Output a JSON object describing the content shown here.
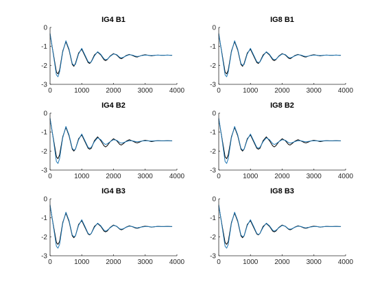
{
  "chart_data": [
    {
      "type": "line",
      "title": "IG4  B1",
      "xlim": [
        0,
        4000
      ],
      "ylim": [
        -3,
        0
      ],
      "xticks": [
        "0",
        "1000",
        "2000",
        "3000",
        "4000"
      ],
      "yticks": [
        "0",
        "-1",
        "-2",
        "-3"
      ],
      "grid": false,
      "x": [
        0,
        100,
        200,
        250,
        300,
        400,
        500,
        600,
        700,
        750,
        800,
        900,
        1000,
        1100,
        1200,
        1250,
        1300,
        1400,
        1500,
        1600,
        1700,
        1750,
        1800,
        1900,
        2000,
        2100,
        2200,
        2250,
        2300,
        2400,
        2500,
        2600,
        2700,
        2750,
        2800,
        2900,
        3000,
        3100,
        3200,
        3300,
        3400,
        3500,
        3600,
        3700,
        3800,
        3850
      ],
      "series": [
        {
          "color": "#000000",
          "values": [
            -0.35,
            -1.35,
            -2.35,
            -2.45,
            -2.25,
            -1.25,
            -0.75,
            -1.2,
            -1.95,
            -2.05,
            -1.9,
            -1.35,
            -1.15,
            -1.5,
            -1.85,
            -1.9,
            -1.8,
            -1.45,
            -1.3,
            -1.45,
            -1.7,
            -1.75,
            -1.7,
            -1.5,
            -1.38,
            -1.45,
            -1.62,
            -1.65,
            -1.6,
            -1.48,
            -1.42,
            -1.48,
            -1.55,
            -1.56,
            -1.53,
            -1.47,
            -1.44,
            -1.47,
            -1.5,
            -1.47,
            -1.46,
            -1.47,
            -1.47,
            -1.46,
            -1.47,
            -1.47
          ]
        },
        {
          "color": "#1f77b4",
          "values": [
            -0.3,
            -1.4,
            -2.5,
            -2.6,
            -2.35,
            -1.3,
            -0.7,
            -1.15,
            -1.9,
            -2.0,
            -1.95,
            -1.4,
            -1.1,
            -1.45,
            -1.8,
            -1.85,
            -1.82,
            -1.5,
            -1.28,
            -1.42,
            -1.65,
            -1.7,
            -1.68,
            -1.52,
            -1.4,
            -1.43,
            -1.58,
            -1.6,
            -1.58,
            -1.5,
            -1.44,
            -1.46,
            -1.52,
            -1.53,
            -1.52,
            -1.48,
            -1.46,
            -1.47,
            -1.48,
            -1.47,
            -1.46,
            -1.47,
            -1.47,
            -1.46,
            -1.47,
            -1.47
          ]
        }
      ]
    },
    {
      "type": "line",
      "title": "IG8  B1",
      "xlim": [
        0,
        4000
      ],
      "ylim": [
        -3,
        0
      ],
      "xticks": [
        "0",
        "1000",
        "2000",
        "3000",
        "4000"
      ],
      "yticks": [
        "0",
        "-1",
        "-2",
        "-3"
      ],
      "grid": false,
      "x": [
        0,
        100,
        200,
        250,
        300,
        400,
        500,
        600,
        700,
        750,
        800,
        900,
        1000,
        1100,
        1200,
        1250,
        1300,
        1400,
        1500,
        1600,
        1700,
        1750,
        1800,
        1900,
        2000,
        2100,
        2200,
        2250,
        2300,
        2400,
        2500,
        2600,
        2700,
        2750,
        2800,
        2900,
        3000,
        3100,
        3200,
        3300,
        3400,
        3500,
        3600,
        3700,
        3800,
        3850
      ],
      "series": [
        {
          "color": "#000000",
          "values": [
            -0.35,
            -1.35,
            -2.35,
            -2.45,
            -2.25,
            -1.25,
            -0.75,
            -1.2,
            -1.95,
            -2.05,
            -1.9,
            -1.35,
            -1.15,
            -1.5,
            -1.85,
            -1.9,
            -1.8,
            -1.45,
            -1.3,
            -1.45,
            -1.7,
            -1.75,
            -1.7,
            -1.5,
            -1.38,
            -1.45,
            -1.62,
            -1.65,
            -1.6,
            -1.48,
            -1.42,
            -1.48,
            -1.55,
            -1.56,
            -1.53,
            -1.47,
            -1.44,
            -1.47,
            -1.5,
            -1.47,
            -1.46,
            -1.47,
            -1.47,
            -1.46,
            -1.47,
            -1.47
          ]
        },
        {
          "color": "#1f77b4",
          "values": [
            -0.3,
            -1.4,
            -2.5,
            -2.6,
            -2.35,
            -1.3,
            -0.7,
            -1.15,
            -1.9,
            -2.0,
            -1.95,
            -1.4,
            -1.1,
            -1.45,
            -1.8,
            -1.85,
            -1.82,
            -1.5,
            -1.28,
            -1.42,
            -1.65,
            -1.7,
            -1.68,
            -1.52,
            -1.4,
            -1.43,
            -1.58,
            -1.6,
            -1.58,
            -1.5,
            -1.44,
            -1.46,
            -1.52,
            -1.53,
            -1.52,
            -1.48,
            -1.46,
            -1.47,
            -1.48,
            -1.47,
            -1.46,
            -1.47,
            -1.47,
            -1.46,
            -1.47,
            -1.47
          ]
        }
      ]
    },
    {
      "type": "line",
      "title": "IG4  B2",
      "xlim": [
        0,
        4000
      ],
      "ylim": [
        -3,
        0
      ],
      "xticks": [
        "0",
        "1000",
        "2000",
        "3000",
        "4000"
      ],
      "yticks": [
        "0",
        "-1",
        "-2",
        "-3"
      ],
      "grid": false,
      "x": [
        0,
        100,
        200,
        250,
        300,
        400,
        500,
        600,
        700,
        750,
        800,
        900,
        1000,
        1100,
        1200,
        1250,
        1300,
        1400,
        1500,
        1600,
        1700,
        1750,
        1800,
        1900,
        2000,
        2100,
        2200,
        2250,
        2300,
        2400,
        2500,
        2600,
        2700,
        2750,
        2800,
        2900,
        3000,
        3100,
        3200,
        3300,
        3400,
        3500,
        3600,
        3700,
        3800,
        3850
      ],
      "series": [
        {
          "color": "#000000",
          "values": [
            -0.3,
            -1.3,
            -2.3,
            -2.4,
            -2.2,
            -1.25,
            -0.75,
            -1.2,
            -1.9,
            -2.0,
            -1.9,
            -1.35,
            -1.15,
            -1.5,
            -1.85,
            -1.9,
            -1.85,
            -1.45,
            -1.25,
            -1.45,
            -1.72,
            -1.78,
            -1.72,
            -1.5,
            -1.35,
            -1.45,
            -1.65,
            -1.68,
            -1.62,
            -1.48,
            -1.4,
            -1.47,
            -1.55,
            -1.57,
            -1.54,
            -1.47,
            -1.43,
            -1.46,
            -1.5,
            -1.47,
            -1.45,
            -1.46,
            -1.46,
            -1.45,
            -1.46,
            -1.46
          ]
        },
        {
          "color": "#1f77b4",
          "values": [
            -0.25,
            -1.35,
            -2.55,
            -2.65,
            -2.4,
            -1.3,
            -0.7,
            -1.15,
            -1.85,
            -1.95,
            -1.9,
            -1.4,
            -1.1,
            -1.45,
            -1.8,
            -1.85,
            -1.8,
            -1.5,
            -1.3,
            -1.4,
            -1.6,
            -1.65,
            -1.62,
            -1.5,
            -1.4,
            -1.43,
            -1.55,
            -1.58,
            -1.56,
            -1.5,
            -1.45,
            -1.46,
            -1.5,
            -1.51,
            -1.5,
            -1.47,
            -1.46,
            -1.46,
            -1.47,
            -1.46,
            -1.45,
            -1.46,
            -1.46,
            -1.45,
            -1.46,
            -1.46
          ]
        }
      ]
    },
    {
      "type": "line",
      "title": "IG8  B2",
      "xlim": [
        0,
        4000
      ],
      "ylim": [
        -3,
        0
      ],
      "xticks": [
        "0",
        "1000",
        "2000",
        "3000",
        "4000"
      ],
      "yticks": [
        "0",
        "-1",
        "-2",
        "-3"
      ],
      "grid": false,
      "x": [
        0,
        100,
        200,
        250,
        300,
        400,
        500,
        600,
        700,
        750,
        800,
        900,
        1000,
        1100,
        1200,
        1250,
        1300,
        1400,
        1500,
        1600,
        1700,
        1750,
        1800,
        1900,
        2000,
        2100,
        2200,
        2250,
        2300,
        2400,
        2500,
        2600,
        2700,
        2750,
        2800,
        2900,
        3000,
        3100,
        3200,
        3300,
        3400,
        3500,
        3600,
        3700,
        3800,
        3850
      ],
      "series": [
        {
          "color": "#000000",
          "values": [
            -0.3,
            -1.3,
            -2.3,
            -2.4,
            -2.2,
            -1.25,
            -0.75,
            -1.2,
            -1.9,
            -2.0,
            -1.9,
            -1.35,
            -1.15,
            -1.5,
            -1.85,
            -1.9,
            -1.85,
            -1.45,
            -1.25,
            -1.45,
            -1.72,
            -1.78,
            -1.72,
            -1.5,
            -1.35,
            -1.45,
            -1.65,
            -1.68,
            -1.62,
            -1.48,
            -1.4,
            -1.47,
            -1.55,
            -1.57,
            -1.54,
            -1.47,
            -1.43,
            -1.46,
            -1.5,
            -1.47,
            -1.45,
            -1.46,
            -1.46,
            -1.45,
            -1.46,
            -1.46
          ]
        },
        {
          "color": "#1f77b4",
          "values": [
            -0.25,
            -1.35,
            -2.55,
            -2.65,
            -2.4,
            -1.3,
            -0.7,
            -1.15,
            -1.85,
            -1.95,
            -1.9,
            -1.4,
            -1.1,
            -1.45,
            -1.8,
            -1.85,
            -1.8,
            -1.5,
            -1.3,
            -1.4,
            -1.6,
            -1.65,
            -1.62,
            -1.5,
            -1.4,
            -1.43,
            -1.55,
            -1.58,
            -1.56,
            -1.5,
            -1.45,
            -1.46,
            -1.5,
            -1.51,
            -1.5,
            -1.47,
            -1.46,
            -1.46,
            -1.47,
            -1.46,
            -1.45,
            -1.46,
            -1.46,
            -1.45,
            -1.46,
            -1.46
          ]
        }
      ]
    },
    {
      "type": "line",
      "title": "IG4  B3",
      "xlim": [
        0,
        4000
      ],
      "ylim": [
        -3,
        0
      ],
      "xticks": [
        "0",
        "1000",
        "2000",
        "3000",
        "4000"
      ],
      "yticks": [
        "0",
        "-1",
        "-2",
        "-3"
      ],
      "grid": false,
      "x": [
        0,
        100,
        200,
        250,
        300,
        400,
        500,
        600,
        700,
        750,
        800,
        900,
        1000,
        1100,
        1200,
        1250,
        1300,
        1400,
        1500,
        1600,
        1700,
        1750,
        1800,
        1900,
        2000,
        2100,
        2200,
        2250,
        2300,
        2400,
        2500,
        2600,
        2700,
        2750,
        2800,
        2900,
        3000,
        3100,
        3200,
        3300,
        3400,
        3500,
        3600,
        3700,
        3800,
        3850
      ],
      "series": [
        {
          "color": "#000000",
          "values": [
            -0.35,
            -1.35,
            -2.3,
            -2.4,
            -2.25,
            -1.25,
            -0.75,
            -1.2,
            -1.95,
            -2.05,
            -1.95,
            -1.35,
            -1.15,
            -1.5,
            -1.85,
            -1.9,
            -1.82,
            -1.45,
            -1.3,
            -1.45,
            -1.7,
            -1.74,
            -1.7,
            -1.5,
            -1.38,
            -1.45,
            -1.6,
            -1.63,
            -1.6,
            -1.49,
            -1.42,
            -1.47,
            -1.54,
            -1.55,
            -1.53,
            -1.47,
            -1.44,
            -1.46,
            -1.49,
            -1.47,
            -1.45,
            -1.46,
            -1.46,
            -1.45,
            -1.46,
            -1.46
          ]
        },
        {
          "color": "#1f77b4",
          "values": [
            -0.3,
            -1.4,
            -2.5,
            -2.6,
            -2.4,
            -1.3,
            -0.7,
            -1.15,
            -1.9,
            -2.0,
            -1.95,
            -1.4,
            -1.1,
            -1.45,
            -1.82,
            -1.88,
            -1.82,
            -1.5,
            -1.28,
            -1.42,
            -1.65,
            -1.7,
            -1.66,
            -1.52,
            -1.4,
            -1.44,
            -1.58,
            -1.6,
            -1.58,
            -1.5,
            -1.44,
            -1.46,
            -1.52,
            -1.53,
            -1.51,
            -1.48,
            -1.46,
            -1.46,
            -1.48,
            -1.47,
            -1.45,
            -1.46,
            -1.46,
            -1.45,
            -1.46,
            -1.46
          ]
        }
      ]
    },
    {
      "type": "line",
      "title": "IG8  B3",
      "xlim": [
        0,
        4000
      ],
      "ylim": [
        -3,
        0
      ],
      "xticks": [
        "0",
        "1000",
        "2000",
        "3000",
        "4000"
      ],
      "yticks": [
        "0",
        "-1",
        "-2",
        "-3"
      ],
      "grid": false,
      "x": [
        0,
        100,
        200,
        250,
        300,
        400,
        500,
        600,
        700,
        750,
        800,
        900,
        1000,
        1100,
        1200,
        1250,
        1300,
        1400,
        1500,
        1600,
        1700,
        1750,
        1800,
        1900,
        2000,
        2100,
        2200,
        2250,
        2300,
        2400,
        2500,
        2600,
        2700,
        2750,
        2800,
        2900,
        3000,
        3100,
        3200,
        3300,
        3400,
        3500,
        3600,
        3700,
        3800,
        3850
      ],
      "series": [
        {
          "color": "#000000",
          "values": [
            -0.35,
            -1.35,
            -2.3,
            -2.4,
            -2.25,
            -1.25,
            -0.75,
            -1.2,
            -1.95,
            -2.05,
            -1.95,
            -1.35,
            -1.15,
            -1.5,
            -1.85,
            -1.9,
            -1.82,
            -1.45,
            -1.3,
            -1.45,
            -1.7,
            -1.74,
            -1.7,
            -1.5,
            -1.38,
            -1.45,
            -1.6,
            -1.63,
            -1.6,
            -1.49,
            -1.42,
            -1.47,
            -1.54,
            -1.55,
            -1.53,
            -1.47,
            -1.44,
            -1.46,
            -1.49,
            -1.47,
            -1.45,
            -1.46,
            -1.46,
            -1.45,
            -1.46,
            -1.46
          ]
        },
        {
          "color": "#1f77b4",
          "values": [
            -0.3,
            -1.4,
            -2.5,
            -2.6,
            -2.4,
            -1.3,
            -0.7,
            -1.15,
            -1.9,
            -2.0,
            -1.95,
            -1.4,
            -1.1,
            -1.45,
            -1.82,
            -1.88,
            -1.82,
            -1.5,
            -1.28,
            -1.42,
            -1.65,
            -1.7,
            -1.66,
            -1.52,
            -1.4,
            -1.44,
            -1.58,
            -1.6,
            -1.58,
            -1.5,
            -1.44,
            -1.46,
            -1.52,
            -1.53,
            -1.51,
            -1.48,
            -1.46,
            -1.46,
            -1.48,
            -1.47,
            -1.45,
            -1.46,
            -1.46,
            -1.45,
            -1.46,
            -1.46
          ]
        }
      ]
    }
  ]
}
